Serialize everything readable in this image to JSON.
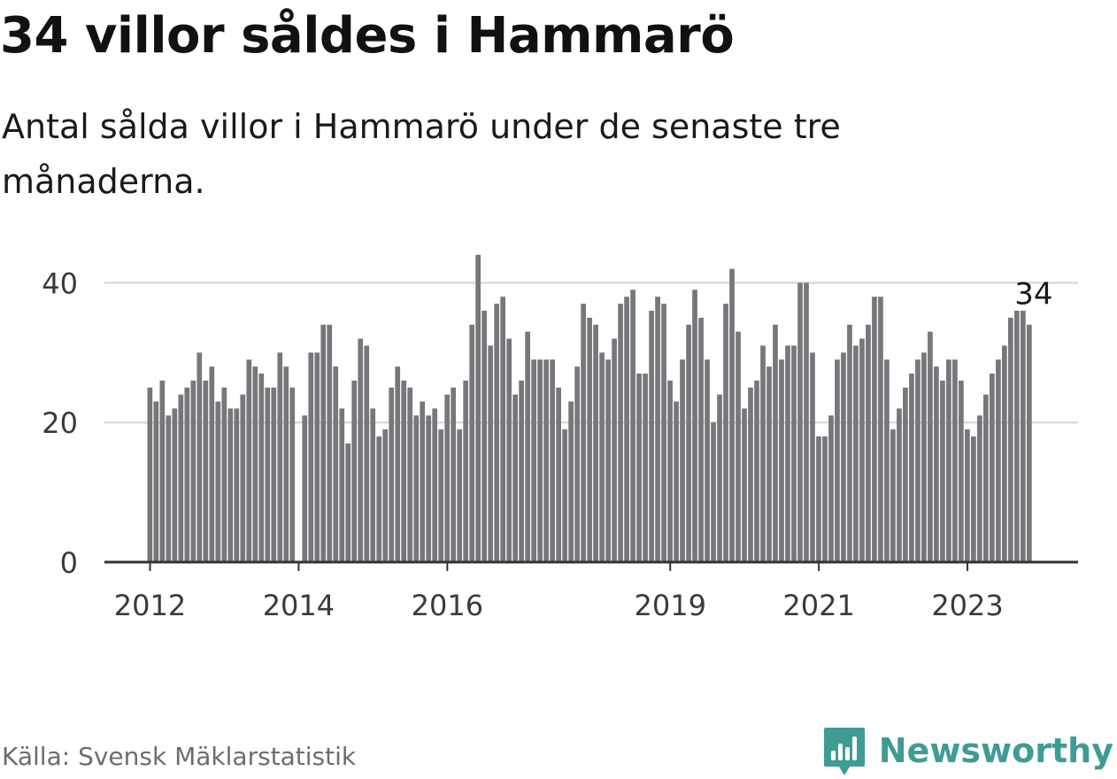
{
  "header": {
    "title": "34 villor såldes i Hammarö",
    "subtitle": "Antal sålda villor i Hammarö under de senaste tre månaderna."
  },
  "footer": {
    "source": "Källa: Svensk Mäklarstatistik",
    "brand": "Newsworthy",
    "logo_icon": "newsworthy-bar-chart-logo-icon"
  },
  "colors": {
    "bars": "#77767b",
    "highlight": "#19a89c",
    "grid": "#dcdcdc",
    "axis": "#333333",
    "brand": "#3f9b95"
  },
  "chart_data": {
    "type": "bar",
    "title": "34 villor såldes i Hammarö",
    "ylim": [
      0,
      45
    ],
    "yticks": [
      0,
      20,
      40
    ],
    "grid": true,
    "xticks": [
      "2012",
      "2014",
      "2016",
      "2019",
      "2021",
      "2023"
    ],
    "highlight": {
      "label": "34",
      "value": 34,
      "index": 143
    },
    "series": [
      {
        "values": [
          25,
          23,
          26,
          21,
          22,
          24,
          25,
          26,
          30,
          26,
          28,
          23,
          25,
          22,
          22,
          24,
          29,
          28,
          27,
          25,
          25,
          30,
          28,
          25,
          0,
          21,
          30,
          30,
          34,
          34,
          28,
          22,
          17,
          26,
          32,
          31,
          22,
          18,
          19,
          25,
          28,
          26,
          25,
          21,
          23,
          21,
          22,
          19,
          24,
          25,
          19,
          26,
          34,
          44,
          36,
          31,
          37,
          38,
          32,
          24,
          26,
          33,
          29,
          29,
          29,
          29,
          25,
          19,
          23,
          28,
          37,
          35,
          34,
          30,
          29,
          32,
          37,
          38,
          39,
          27,
          27,
          36,
          38,
          37,
          26,
          23,
          29,
          34,
          39,
          35,
          29,
          20,
          24,
          37,
          42,
          33,
          22,
          25,
          26,
          31,
          28,
          34,
          29,
          31,
          31,
          40,
          40,
          30,
          18,
          18,
          21,
          29,
          30,
          34,
          31,
          32,
          34,
          38,
          38,
          29,
          19,
          22,
          25,
          27,
          29,
          30,
          33,
          28,
          26,
          29,
          29,
          26,
          19,
          18,
          21,
          24,
          27,
          29,
          31,
          35,
          36,
          36,
          34
        ]
      }
    ]
  }
}
